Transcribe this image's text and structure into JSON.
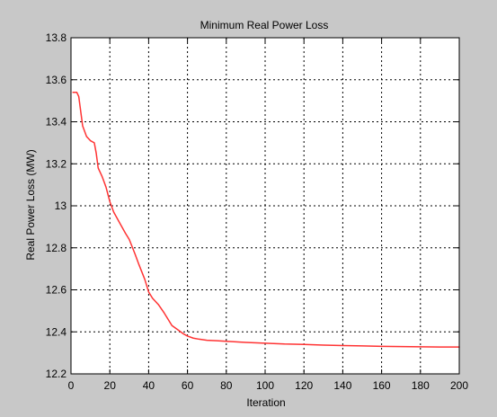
{
  "colors": {
    "figure_background": "#c8c8c8",
    "plot_background": "#ffffff",
    "grid": "#000000",
    "series_line": "#ff3333",
    "text": "#000000"
  },
  "chart_data": {
    "type": "line",
    "title": "Minimum Real Power Loss",
    "xlabel": "Iteration",
    "ylabel": "Real Power Loss (MW)",
    "xlim": [
      0,
      200
    ],
    "ylim": [
      12.2,
      13.8
    ],
    "grid": true,
    "grid_style": "dotted",
    "legend": "none",
    "xticks": [
      0,
      20,
      40,
      60,
      80,
      100,
      120,
      140,
      160,
      180,
      200
    ],
    "yticks": [
      12.2,
      12.4,
      12.6,
      12.8,
      13,
      13.2,
      13.4,
      13.6,
      13.8
    ],
    "xtick_labels": [
      "0",
      "20",
      "40",
      "60",
      "80",
      "100",
      "120",
      "140",
      "160",
      "180",
      "200"
    ],
    "ytick_labels": [
      "12.2",
      "12.4",
      "12.6",
      "12.8",
      "13",
      "13.2",
      "13.4",
      "13.6",
      "13.8"
    ],
    "series": [
      {
        "x": [
          1,
          3,
          4,
          5,
          6,
          8,
          10,
          12,
          13,
          14,
          16,
          18,
          20,
          22,
          25,
          28,
          30,
          33,
          35,
          38,
          40,
          42,
          45,
          48,
          50,
          52,
          55,
          58,
          60,
          63,
          66,
          70,
          75,
          80,
          90,
          100,
          110,
          120,
          130,
          140,
          150,
          160,
          170,
          180,
          190,
          200
        ],
        "y": [
          13.54,
          13.54,
          13.52,
          13.45,
          13.38,
          13.33,
          13.31,
          13.3,
          13.25,
          13.18,
          13.14,
          13.09,
          13.02,
          12.97,
          12.92,
          12.87,
          12.84,
          12.77,
          12.72,
          12.65,
          12.59,
          12.56,
          12.53,
          12.49,
          12.46,
          12.43,
          12.41,
          12.39,
          12.38,
          12.37,
          12.365,
          12.36,
          12.358,
          12.355,
          12.35,
          12.346,
          12.342,
          12.34,
          12.337,
          12.335,
          12.333,
          12.331,
          12.33,
          12.329,
          12.328,
          12.328
        ]
      }
    ]
  }
}
